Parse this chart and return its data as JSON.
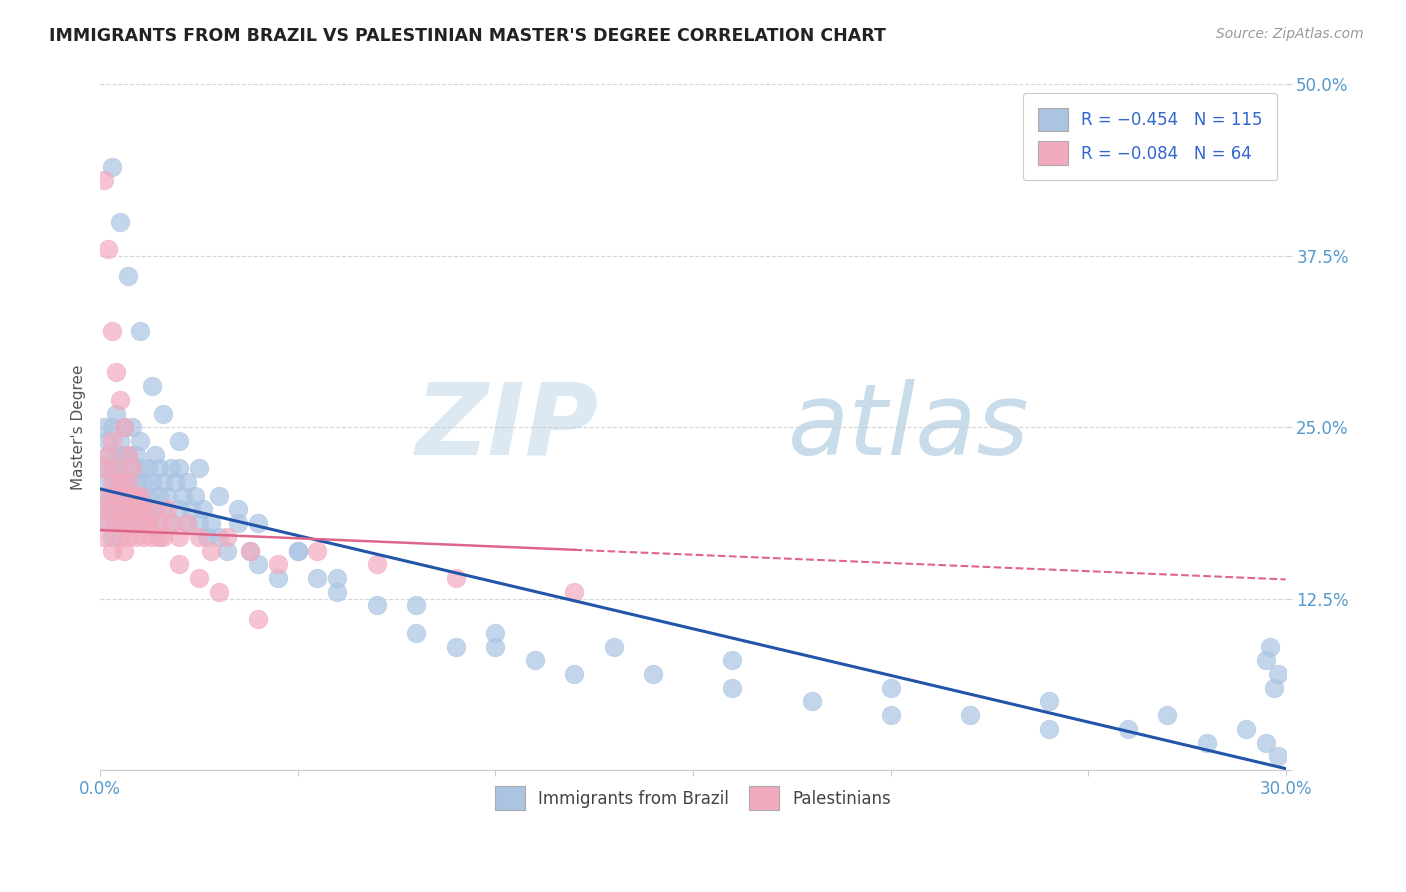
{
  "title": "IMMIGRANTS FROM BRAZIL VS PALESTINIAN MASTER'S DEGREE CORRELATION CHART",
  "source_text": "Source: ZipAtlas.com",
  "ylabel": "Master's Degree",
  "legend_labels": [
    "Immigrants from Brazil",
    "Palestinians"
  ],
  "legend_r": [
    "R = −0.454",
    "R = −0.084"
  ],
  "legend_n": [
    "N = 115",
    "N = 64"
  ],
  "blue_color": "#aac4e2",
  "pink_color": "#f2aabe",
  "trendline_blue": "#2255aa",
  "trendline_pink": "#dd6688",
  "xlim": [
    0.0,
    0.3
  ],
  "ylim": [
    0.0,
    0.5
  ],
  "blue_intercept": 0.205,
  "blue_slope": -0.68,
  "pink_intercept": 0.175,
  "pink_slope": -0.12,
  "blue_scatter_x": [
    0.001,
    0.001,
    0.001,
    0.001,
    0.002,
    0.002,
    0.002,
    0.002,
    0.003,
    0.003,
    0.003,
    0.003,
    0.003,
    0.004,
    0.004,
    0.004,
    0.004,
    0.004,
    0.005,
    0.005,
    0.005,
    0.005,
    0.006,
    0.006,
    0.006,
    0.006,
    0.007,
    0.007,
    0.007,
    0.008,
    0.008,
    0.008,
    0.008,
    0.009,
    0.009,
    0.009,
    0.01,
    0.01,
    0.01,
    0.01,
    0.011,
    0.011,
    0.012,
    0.012,
    0.013,
    0.013,
    0.014,
    0.014,
    0.015,
    0.015,
    0.016,
    0.016,
    0.017,
    0.018,
    0.018,
    0.019,
    0.02,
    0.02,
    0.021,
    0.022,
    0.022,
    0.023,
    0.024,
    0.025,
    0.026,
    0.027,
    0.028,
    0.03,
    0.032,
    0.035,
    0.038,
    0.04,
    0.045,
    0.05,
    0.055,
    0.06,
    0.07,
    0.08,
    0.09,
    0.1,
    0.11,
    0.12,
    0.14,
    0.16,
    0.18,
    0.2,
    0.22,
    0.24,
    0.26,
    0.28,
    0.295,
    0.298,
    0.003,
    0.005,
    0.007,
    0.01,
    0.013,
    0.016,
    0.02,
    0.025,
    0.03,
    0.035,
    0.04,
    0.05,
    0.06,
    0.08,
    0.1,
    0.13,
    0.16,
    0.2,
    0.24,
    0.27,
    0.29,
    0.295,
    0.298,
    0.296,
    0.297
  ],
  "blue_scatter_y": [
    0.22,
    0.19,
    0.25,
    0.2,
    0.21,
    0.23,
    0.18,
    0.24,
    0.2,
    0.22,
    0.17,
    0.25,
    0.19,
    0.21,
    0.23,
    0.18,
    0.26,
    0.2,
    0.22,
    0.19,
    0.24,
    0.21,
    0.2,
    0.23,
    0.18,
    0.25,
    0.21,
    0.19,
    0.23,
    0.2,
    0.22,
    0.18,
    0.25,
    0.21,
    0.19,
    0.23,
    0.2,
    0.22,
    0.18,
    0.24,
    0.21,
    0.19,
    0.22,
    0.2,
    0.21,
    0.19,
    0.23,
    0.18,
    0.2,
    0.22,
    0.19,
    0.21,
    0.2,
    0.22,
    0.18,
    0.21,
    0.19,
    0.22,
    0.2,
    0.18,
    0.21,
    0.19,
    0.2,
    0.18,
    0.19,
    0.17,
    0.18,
    0.17,
    0.16,
    0.18,
    0.16,
    0.15,
    0.14,
    0.16,
    0.14,
    0.13,
    0.12,
    0.1,
    0.09,
    0.09,
    0.08,
    0.07,
    0.07,
    0.06,
    0.05,
    0.04,
    0.04,
    0.03,
    0.03,
    0.02,
    0.02,
    0.01,
    0.44,
    0.4,
    0.36,
    0.32,
    0.28,
    0.26,
    0.24,
    0.22,
    0.2,
    0.19,
    0.18,
    0.16,
    0.14,
    0.12,
    0.1,
    0.09,
    0.08,
    0.06,
    0.05,
    0.04,
    0.03,
    0.08,
    0.07,
    0.09,
    0.06
  ],
  "pink_scatter_x": [
    0.001,
    0.001,
    0.001,
    0.002,
    0.002,
    0.002,
    0.003,
    0.003,
    0.003,
    0.003,
    0.004,
    0.004,
    0.004,
    0.005,
    0.005,
    0.005,
    0.006,
    0.006,
    0.006,
    0.007,
    0.007,
    0.007,
    0.008,
    0.008,
    0.009,
    0.009,
    0.01,
    0.01,
    0.011,
    0.011,
    0.012,
    0.013,
    0.014,
    0.015,
    0.016,
    0.017,
    0.018,
    0.02,
    0.022,
    0.025,
    0.028,
    0.032,
    0.038,
    0.045,
    0.055,
    0.07,
    0.09,
    0.12,
    0.001,
    0.002,
    0.003,
    0.004,
    0.005,
    0.006,
    0.007,
    0.008,
    0.009,
    0.01,
    0.012,
    0.015,
    0.02,
    0.025,
    0.03,
    0.04
  ],
  "pink_scatter_y": [
    0.19,
    0.22,
    0.17,
    0.2,
    0.23,
    0.18,
    0.19,
    0.21,
    0.16,
    0.24,
    0.18,
    0.22,
    0.2,
    0.19,
    0.17,
    0.21,
    0.18,
    0.2,
    0.16,
    0.19,
    0.21,
    0.17,
    0.18,
    0.2,
    0.17,
    0.19,
    0.18,
    0.2,
    0.17,
    0.19,
    0.18,
    0.17,
    0.19,
    0.18,
    0.17,
    0.19,
    0.18,
    0.17,
    0.18,
    0.17,
    0.16,
    0.17,
    0.16,
    0.15,
    0.16,
    0.15,
    0.14,
    0.13,
    0.43,
    0.38,
    0.32,
    0.29,
    0.27,
    0.25,
    0.23,
    0.22,
    0.2,
    0.19,
    0.18,
    0.17,
    0.15,
    0.14,
    0.13,
    0.11
  ]
}
